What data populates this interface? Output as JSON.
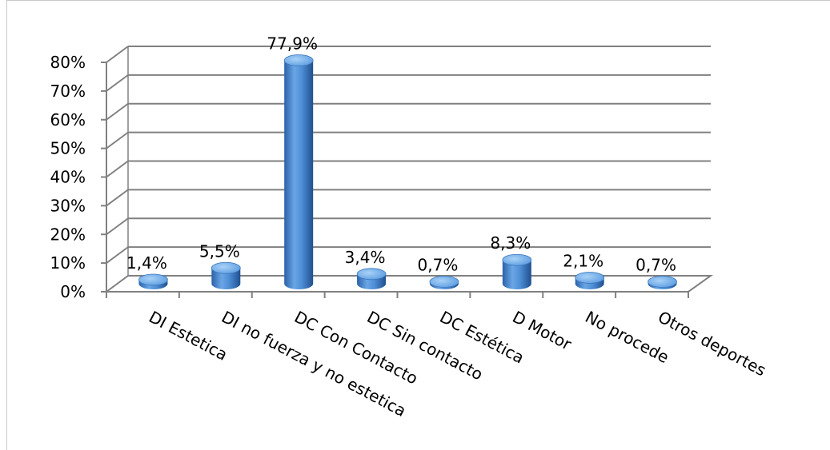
{
  "chart_data": {
    "type": "bar",
    "categories": [
      "DI Estetica",
      "DI no fuerza y no estetica",
      "DC Con Contacto",
      "DC Sin contacto",
      "DC Estética",
      "D Motor",
      "No procede",
      "Otros deportes"
    ],
    "values": [
      1.4,
      5.5,
      77.9,
      3.4,
      0.7,
      8.3,
      2.1,
      0.7
    ],
    "data_labels": [
      "1,4%",
      "5,5%",
      "77,9%",
      "3,4%",
      "0,7%",
      "8,3%",
      "2,1%",
      "0,7%"
    ],
    "y_ticks": [
      0,
      10,
      20,
      30,
      40,
      50,
      60,
      70,
      80
    ],
    "y_tick_labels": [
      "0%",
      "10%",
      "20%",
      "30%",
      "40%",
      "50%",
      "60%",
      "70%",
      "80%"
    ],
    "ylim": [
      0,
      80
    ],
    "grid": true,
    "legend": "none",
    "style": "3d-cylinder",
    "colors": {
      "bar": "#4f8fd6",
      "bar_dark": "#2d6bb0",
      "bar_light": "#8ec0f0",
      "grid": "#808080"
    }
  }
}
